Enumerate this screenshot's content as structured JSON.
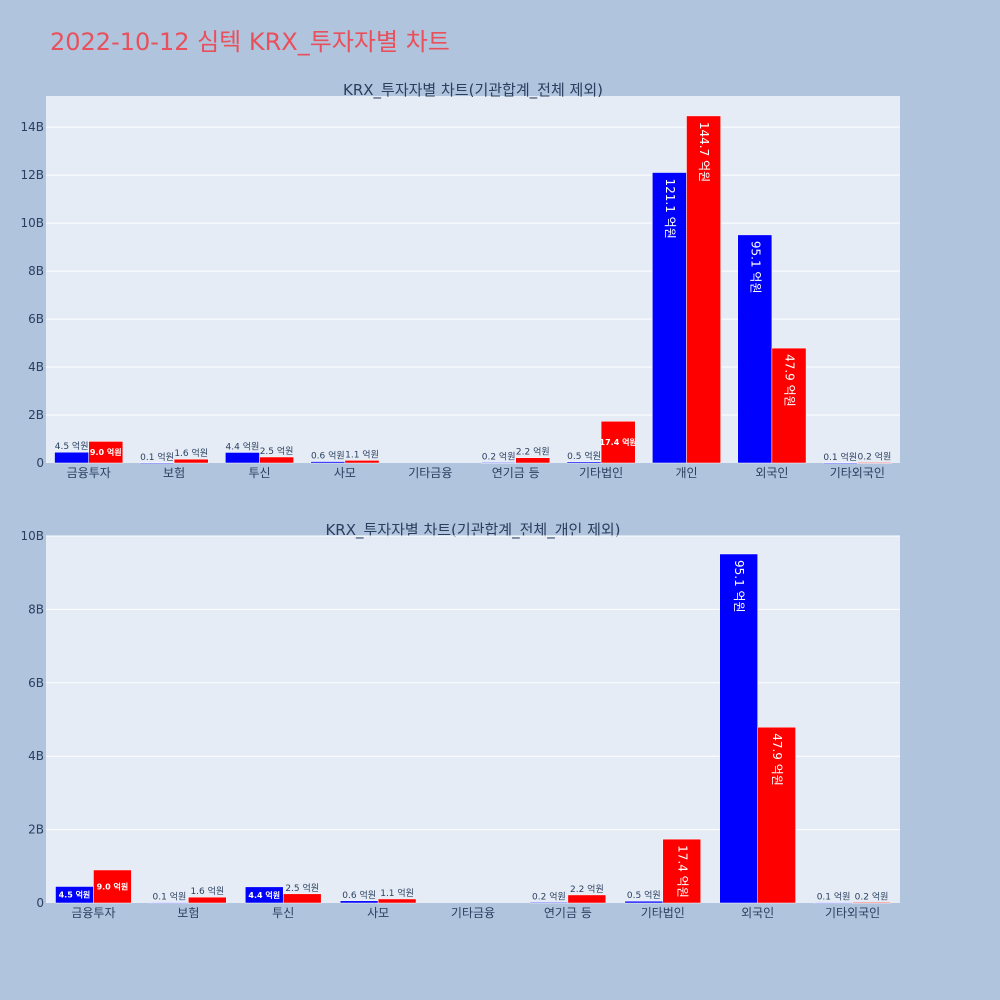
{
  "page_title": "2022-10-12 심텍 KRX_투자자별 차트",
  "colors": {
    "background": "#b0c4de",
    "plot_background": "#e5ecf6",
    "gridline": "#ffffff",
    "series_blue": "#0000ff",
    "series_red": "#ff0000",
    "title_color": "#e8505b",
    "text_color": "#2a3f5f"
  },
  "chart_data": [
    {
      "type": "bar",
      "title": "KRX_투자자별 차트(기관합계_전체 제외)",
      "categories": [
        "금융투자",
        "보험",
        "투신",
        "사모",
        "기타금융",
        "연기금 등",
        "기타법인",
        "개인",
        "외국인",
        "기타외국인"
      ],
      "series": [
        {
          "color": "#0000ff",
          "values": [
            450000000,
            10000000,
            440000000,
            60000000,
            0,
            20000000,
            50000000,
            12110000000,
            9510000000,
            10000000
          ],
          "labels": [
            "4.5 억원",
            "0.1 억원",
            "4.4 억원",
            "0.6 억원",
            "",
            "0.2 억원",
            "0.5 억원",
            "121.1 억원",
            "95.1 억원",
            "0.1 억원"
          ]
        },
        {
          "color": "#ff0000",
          "values": [
            900000000,
            160000000,
            250000000,
            110000000,
            0,
            220000000,
            1740000000,
            14470000000,
            4790000000,
            20000000
          ],
          "labels": [
            "9.0 억원",
            "1.6 억원",
            "2.5 억원",
            "1.1 억원",
            "",
            "2.2 억원",
            "17.4 억원",
            "144.7 억원",
            "47.9 억원",
            "0.2 억원"
          ]
        }
      ],
      "ylim": [
        0,
        15300000000
      ],
      "yticks": [
        0,
        2000000000,
        4000000000,
        6000000000,
        8000000000,
        10000000000,
        12000000000,
        14000000000
      ],
      "ytick_labels": [
        "0",
        "2B",
        "4B",
        "6B",
        "8B",
        "10B",
        "12B",
        "14B"
      ],
      "grid": true
    },
    {
      "type": "bar",
      "title": "KRX_투자자별 차트(기관합계_전체_개인 제외)",
      "categories": [
        "금융투자",
        "보험",
        "투신",
        "사모",
        "기타금융",
        "연기금 등",
        "기타법인",
        "외국인",
        "기타외국인"
      ],
      "series": [
        {
          "color": "#0000ff",
          "values": [
            450000000,
            10000000,
            440000000,
            60000000,
            0,
            20000000,
            50000000,
            9510000000,
            10000000
          ],
          "labels": [
            "4.5 억원",
            "0.1 억원",
            "4.4 억원",
            "0.6 억원",
            "",
            "0.2 억원",
            "0.5 억원",
            "95.1 억원",
            "0.1 억원"
          ]
        },
        {
          "color": "#ff0000",
          "values": [
            900000000,
            160000000,
            250000000,
            110000000,
            0,
            220000000,
            1740000000,
            4790000000,
            20000000
          ],
          "labels": [
            "9.0 억원",
            "1.6 억원",
            "2.5 억원",
            "1.1 억원",
            "",
            "2.2 억원",
            "17.4 억원",
            "47.9 억원",
            "0.2 억원"
          ]
        }
      ],
      "ylim": [
        0,
        10000000000
      ],
      "yticks": [
        0,
        2000000000,
        4000000000,
        6000000000,
        8000000000,
        10000000000
      ],
      "ytick_labels": [
        "0",
        "2B",
        "4B",
        "6B",
        "8B",
        "10B"
      ],
      "grid": true
    }
  ]
}
